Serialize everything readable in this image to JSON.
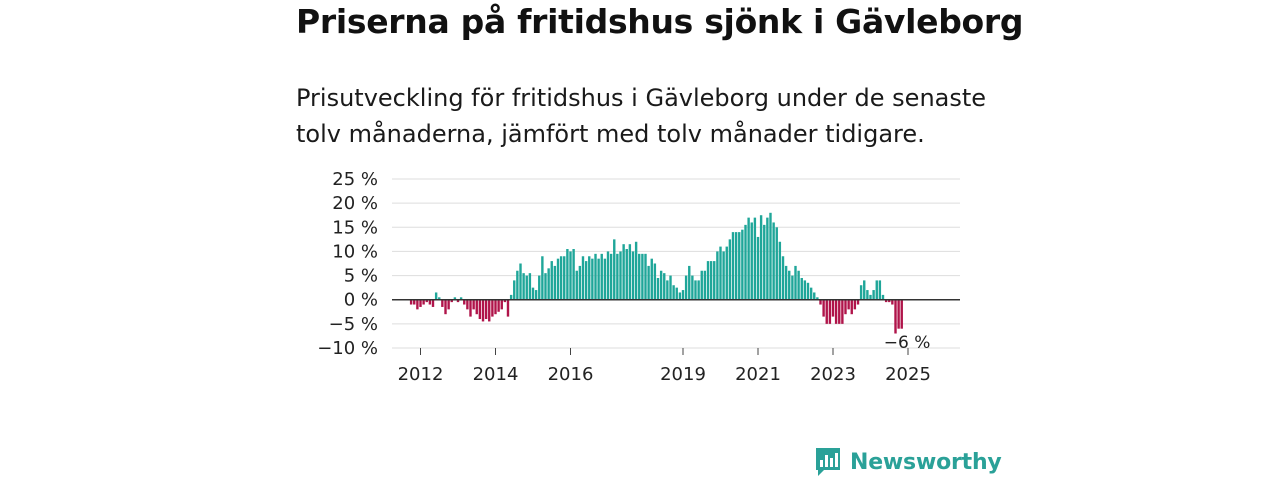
{
  "header": {
    "title": "Priserna på fritidshus sjönk i Gävleborg",
    "subtitle": "Prisutveckling för fritidshus i Gävleborg under de senaste tolv månaderna, jämfört med tolv månader tidigare."
  },
  "brand": {
    "name": "Newsworthy",
    "color": "#2aa198"
  },
  "colors": {
    "positive": "#1fa699",
    "negative": "#b0144a",
    "grid": "#dddddd",
    "zero": "#333333"
  },
  "chart_data": {
    "type": "bar",
    "title": "",
    "xlabel": "",
    "ylabel": "",
    "ylim": [
      -10,
      25
    ],
    "yticks": [
      25,
      20,
      15,
      10,
      5,
      0,
      -5,
      -10
    ],
    "ytick_labels": [
      "25 %",
      "20 %",
      "15 %",
      "10 %",
      "5 %",
      "0 %",
      "−5 %",
      "−10 %"
    ],
    "xticks": [
      2012,
      2014,
      2016,
      2019,
      2021,
      2023,
      2025
    ],
    "x_range": [
      2011.0,
      2026.0
    ],
    "grid": true,
    "annotation": {
      "text": "−6 %",
      "value": -6
    },
    "series": [
      {
        "x": 2011.75,
        "value": -1.0
      },
      {
        "x": 2011.833,
        "value": -1.0
      },
      {
        "x": 2011.917,
        "value": -2.0
      },
      {
        "x": 2012.0,
        "value": -1.5
      },
      {
        "x": 2012.083,
        "value": -1.0
      },
      {
        "x": 2012.167,
        "value": -0.5
      },
      {
        "x": 2012.25,
        "value": -1.0
      },
      {
        "x": 2012.333,
        "value": -1.5
      },
      {
        "x": 2012.417,
        "value": 1.5
      },
      {
        "x": 2012.5,
        "value": 0.5
      },
      {
        "x": 2012.583,
        "value": -1.5
      },
      {
        "x": 2012.667,
        "value": -3.0
      },
      {
        "x": 2012.75,
        "value": -2.0
      },
      {
        "x": 2012.833,
        "value": -0.5
      },
      {
        "x": 2012.917,
        "value": 0.5
      },
      {
        "x": 2013.0,
        "value": -0.5
      },
      {
        "x": 2013.083,
        "value": 0.5
      },
      {
        "x": 2013.167,
        "value": -1.0
      },
      {
        "x": 2013.25,
        "value": -2.0
      },
      {
        "x": 2013.333,
        "value": -3.5
      },
      {
        "x": 2013.417,
        "value": -2.0
      },
      {
        "x": 2013.5,
        "value": -3.0
      },
      {
        "x": 2013.583,
        "value": -4.0
      },
      {
        "x": 2013.667,
        "value": -4.5
      },
      {
        "x": 2013.75,
        "value": -4.0
      },
      {
        "x": 2013.833,
        "value": -4.5
      },
      {
        "x": 2013.917,
        "value": -3.5
      },
      {
        "x": 2014.0,
        "value": -3.0
      },
      {
        "x": 2014.083,
        "value": -2.5
      },
      {
        "x": 2014.167,
        "value": -2.0
      },
      {
        "x": 2014.25,
        "value": -0.5
      },
      {
        "x": 2014.333,
        "value": -3.5
      },
      {
        "x": 2014.417,
        "value": 1.0
      },
      {
        "x": 2014.5,
        "value": 4.0
      },
      {
        "x": 2014.583,
        "value": 6.0
      },
      {
        "x": 2014.667,
        "value": 7.5
      },
      {
        "x": 2014.75,
        "value": 5.5
      },
      {
        "x": 2014.833,
        "value": 5.0
      },
      {
        "x": 2014.917,
        "value": 5.5
      },
      {
        "x": 2015.0,
        "value": 2.5
      },
      {
        "x": 2015.083,
        "value": 2.0
      },
      {
        "x": 2015.167,
        "value": 5.0
      },
      {
        "x": 2015.25,
        "value": 9.0
      },
      {
        "x": 2015.333,
        "value": 5.5
      },
      {
        "x": 2015.417,
        "value": 6.5
      },
      {
        "x": 2015.5,
        "value": 8.0
      },
      {
        "x": 2015.583,
        "value": 7.0
      },
      {
        "x": 2015.667,
        "value": 8.5
      },
      {
        "x": 2015.75,
        "value": 9.0
      },
      {
        "x": 2015.833,
        "value": 9.0
      },
      {
        "x": 2015.917,
        "value": 10.5
      },
      {
        "x": 2016.0,
        "value": 10.0
      },
      {
        "x": 2016.083,
        "value": 10.5
      },
      {
        "x": 2016.167,
        "value": 6.0
      },
      {
        "x": 2016.25,
        "value": 7.0
      },
      {
        "x": 2016.333,
        "value": 9.0
      },
      {
        "x": 2016.417,
        "value": 8.0
      },
      {
        "x": 2016.5,
        "value": 9.0
      },
      {
        "x": 2016.583,
        "value": 8.5
      },
      {
        "x": 2016.667,
        "value": 9.5
      },
      {
        "x": 2016.75,
        "value": 8.5
      },
      {
        "x": 2016.833,
        "value": 9.5
      },
      {
        "x": 2016.917,
        "value": 8.5
      },
      {
        "x": 2017.0,
        "value": 10.0
      },
      {
        "x": 2017.083,
        "value": 9.5
      },
      {
        "x": 2017.167,
        "value": 12.5
      },
      {
        "x": 2017.25,
        "value": 9.5
      },
      {
        "x": 2017.333,
        "value": 10.0
      },
      {
        "x": 2017.417,
        "value": 11.5
      },
      {
        "x": 2017.5,
        "value": 10.5
      },
      {
        "x": 2017.583,
        "value": 11.5
      },
      {
        "x": 2017.667,
        "value": 10.0
      },
      {
        "x": 2017.75,
        "value": 12.0
      },
      {
        "x": 2017.833,
        "value": 9.5
      },
      {
        "x": 2017.917,
        "value": 9.5
      },
      {
        "x": 2018.0,
        "value": 9.5
      },
      {
        "x": 2018.083,
        "value": 7.0
      },
      {
        "x": 2018.167,
        "value": 8.5
      },
      {
        "x": 2018.25,
        "value": 7.5
      },
      {
        "x": 2018.333,
        "value": 4.5
      },
      {
        "x": 2018.417,
        "value": 6.0
      },
      {
        "x": 2018.5,
        "value": 5.5
      },
      {
        "x": 2018.583,
        "value": 4.0
      },
      {
        "x": 2018.667,
        "value": 5.0
      },
      {
        "x": 2018.75,
        "value": 3.0
      },
      {
        "x": 2018.833,
        "value": 2.5
      },
      {
        "x": 2018.917,
        "value": 1.5
      },
      {
        "x": 2019.0,
        "value": 2.0
      },
      {
        "x": 2019.083,
        "value": 5.0
      },
      {
        "x": 2019.167,
        "value": 7.0
      },
      {
        "x": 2019.25,
        "value": 5.0
      },
      {
        "x": 2019.333,
        "value": 4.0
      },
      {
        "x": 2019.417,
        "value": 4.0
      },
      {
        "x": 2019.5,
        "value": 6.0
      },
      {
        "x": 2019.583,
        "value": 6.0
      },
      {
        "x": 2019.667,
        "value": 8.0
      },
      {
        "x": 2019.75,
        "value": 8.0
      },
      {
        "x": 2019.833,
        "value": 8.0
      },
      {
        "x": 2019.917,
        "value": 10.0
      },
      {
        "x": 2020.0,
        "value": 11.0
      },
      {
        "x": 2020.083,
        "value": 10.0
      },
      {
        "x": 2020.167,
        "value": 11.0
      },
      {
        "x": 2020.25,
        "value": 12.5
      },
      {
        "x": 2020.333,
        "value": 14.0
      },
      {
        "x": 2020.417,
        "value": 14.0
      },
      {
        "x": 2020.5,
        "value": 14.0
      },
      {
        "x": 2020.583,
        "value": 14.5
      },
      {
        "x": 2020.667,
        "value": 15.5
      },
      {
        "x": 2020.75,
        "value": 17.0
      },
      {
        "x": 2020.833,
        "value": 16.0
      },
      {
        "x": 2020.917,
        "value": 17.0
      },
      {
        "x": 2021.0,
        "value": 13.0
      },
      {
        "x": 2021.083,
        "value": 17.5
      },
      {
        "x": 2021.167,
        "value": 15.5
      },
      {
        "x": 2021.25,
        "value": 17.0
      },
      {
        "x": 2021.333,
        "value": 18.0
      },
      {
        "x": 2021.417,
        "value": 16.0
      },
      {
        "x": 2021.5,
        "value": 15.0
      },
      {
        "x": 2021.583,
        "value": 12.0
      },
      {
        "x": 2021.667,
        "value": 9.0
      },
      {
        "x": 2021.75,
        "value": 7.0
      },
      {
        "x": 2021.833,
        "value": 6.0
      },
      {
        "x": 2021.917,
        "value": 5.0
      },
      {
        "x": 2022.0,
        "value": 7.0
      },
      {
        "x": 2022.083,
        "value": 6.0
      },
      {
        "x": 2022.167,
        "value": 4.5
      },
      {
        "x": 2022.25,
        "value": 4.0
      },
      {
        "x": 2022.333,
        "value": 3.5
      },
      {
        "x": 2022.417,
        "value": 2.5
      },
      {
        "x": 2022.5,
        "value": 1.5
      },
      {
        "x": 2022.583,
        "value": 0.5
      },
      {
        "x": 2022.667,
        "value": -1.0
      },
      {
        "x": 2022.75,
        "value": -3.5
      },
      {
        "x": 2022.833,
        "value": -5.0
      },
      {
        "x": 2022.917,
        "value": -5.0
      },
      {
        "x": 2023.0,
        "value": -3.5
      },
      {
        "x": 2023.083,
        "value": -5.0
      },
      {
        "x": 2023.167,
        "value": -5.0
      },
      {
        "x": 2023.25,
        "value": -5.0
      },
      {
        "x": 2023.333,
        "value": -3.0
      },
      {
        "x": 2023.417,
        "value": -2.0
      },
      {
        "x": 2023.5,
        "value": -3.0
      },
      {
        "x": 2023.583,
        "value": -2.0
      },
      {
        "x": 2023.667,
        "value": -1.0
      },
      {
        "x": 2023.75,
        "value": 3.0
      },
      {
        "x": 2023.833,
        "value": 4.0
      },
      {
        "x": 2023.917,
        "value": 2.0
      },
      {
        "x": 2024.0,
        "value": 1.0
      },
      {
        "x": 2024.083,
        "value": 2.0
      },
      {
        "x": 2024.167,
        "value": 4.0
      },
      {
        "x": 2024.25,
        "value": 4.0
      },
      {
        "x": 2024.333,
        "value": 1.0
      },
      {
        "x": 2024.417,
        "value": -0.5
      },
      {
        "x": 2024.5,
        "value": -0.5
      },
      {
        "x": 2024.583,
        "value": -1.0
      },
      {
        "x": 2024.667,
        "value": -7.0
      },
      {
        "x": 2024.75,
        "value": -6.0
      },
      {
        "x": 2024.833,
        "value": -6.0
      }
    ]
  }
}
